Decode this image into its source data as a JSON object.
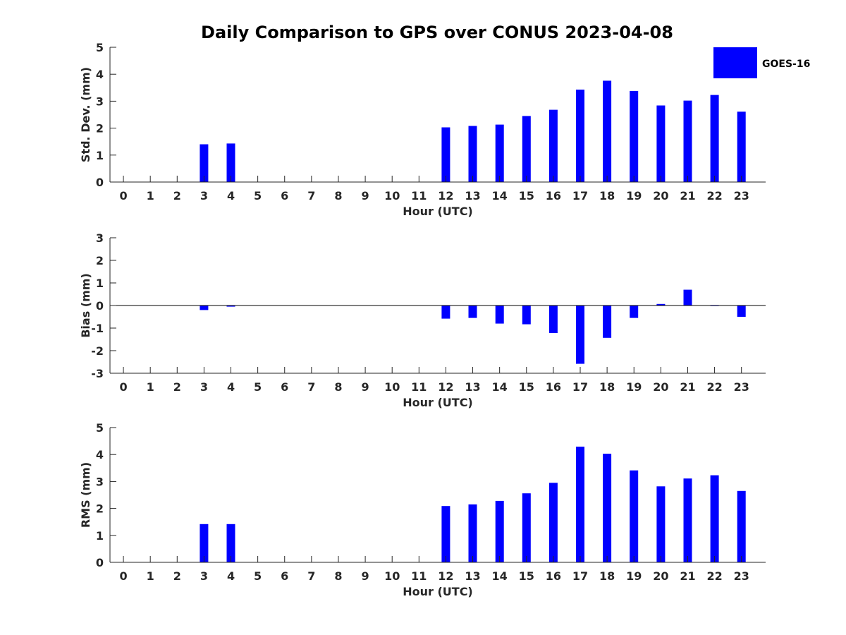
{
  "figure": {
    "title": "Daily Comparison to GPS over CONUS 2023-04-08",
    "bar_color": "#0000ff",
    "axis_color": "#262626",
    "legend": {
      "label": "GOES-16",
      "placement": "top-right"
    }
  },
  "chart_data": [
    {
      "type": "bar",
      "title": "",
      "xlabel": "Hour (UTC)",
      "ylabel": "Std. Dev. (mm)",
      "categories": [
        "0",
        "1",
        "2",
        "3",
        "4",
        "5",
        "6",
        "7",
        "8",
        "9",
        "10",
        "11",
        "12",
        "13",
        "14",
        "15",
        "16",
        "17",
        "18",
        "19",
        "20",
        "21",
        "22",
        "23"
      ],
      "x": [
        0,
        1,
        2,
        3,
        4,
        5,
        6,
        7,
        8,
        9,
        10,
        11,
        12,
        13,
        14,
        15,
        16,
        17,
        18,
        19,
        20,
        21,
        22,
        23
      ],
      "xlim": [
        -0.5,
        23.9
      ],
      "ylim": [
        0,
        5
      ],
      "yticks": [
        0,
        1,
        2,
        3,
        4,
        5
      ],
      "grid": false,
      "series": [
        {
          "name": "GOES-16",
          "values": [
            null,
            null,
            null,
            1.4,
            1.43,
            null,
            null,
            null,
            null,
            null,
            null,
            null,
            2.03,
            2.08,
            2.13,
            2.45,
            2.68,
            3.43,
            3.76,
            3.38,
            2.84,
            3.02,
            3.23,
            2.61
          ]
        }
      ]
    },
    {
      "type": "bar",
      "title": "",
      "xlabel": "Hour (UTC)",
      "ylabel": "Bias (mm)",
      "categories": [
        "0",
        "1",
        "2",
        "3",
        "4",
        "5",
        "6",
        "7",
        "8",
        "9",
        "10",
        "11",
        "12",
        "13",
        "14",
        "15",
        "16",
        "17",
        "18",
        "19",
        "20",
        "21",
        "22",
        "23"
      ],
      "x": [
        0,
        1,
        2,
        3,
        4,
        5,
        6,
        7,
        8,
        9,
        10,
        11,
        12,
        13,
        14,
        15,
        16,
        17,
        18,
        19,
        20,
        21,
        22,
        23
      ],
      "xlim": [
        -0.5,
        23.9
      ],
      "ylim": [
        -3,
        3
      ],
      "yticks": [
        -3,
        -2,
        -1,
        0,
        1,
        2,
        3
      ],
      "grid": false,
      "zero_line": true,
      "series": [
        {
          "name": "GOES-16",
          "values": [
            null,
            null,
            null,
            -0.2,
            -0.05,
            null,
            null,
            null,
            null,
            null,
            null,
            null,
            -0.58,
            -0.55,
            -0.8,
            -0.83,
            -1.22,
            -2.58,
            -1.43,
            -0.55,
            0.07,
            0.7,
            -0.02,
            -0.5
          ]
        }
      ]
    },
    {
      "type": "bar",
      "title": "",
      "xlabel": "Hour (UTC)",
      "ylabel": "RMS (mm)",
      "categories": [
        "0",
        "1",
        "2",
        "3",
        "4",
        "5",
        "6",
        "7",
        "8",
        "9",
        "10",
        "11",
        "12",
        "13",
        "14",
        "15",
        "16",
        "17",
        "18",
        "19",
        "20",
        "21",
        "22",
        "23"
      ],
      "x": [
        0,
        1,
        2,
        3,
        4,
        5,
        6,
        7,
        8,
        9,
        10,
        11,
        12,
        13,
        14,
        15,
        16,
        17,
        18,
        19,
        20,
        21,
        22,
        23
      ],
      "xlim": [
        -0.5,
        23.9
      ],
      "ylim": [
        0,
        5
      ],
      "yticks": [
        0,
        1,
        2,
        3,
        4,
        5
      ],
      "grid": false,
      "series": [
        {
          "name": "GOES-16",
          "values": [
            null,
            null,
            null,
            1.42,
            1.42,
            null,
            null,
            null,
            null,
            null,
            null,
            null,
            2.09,
            2.15,
            2.28,
            2.56,
            2.95,
            4.29,
            4.03,
            3.41,
            2.82,
            3.11,
            3.23,
            2.65
          ]
        }
      ]
    }
  ]
}
